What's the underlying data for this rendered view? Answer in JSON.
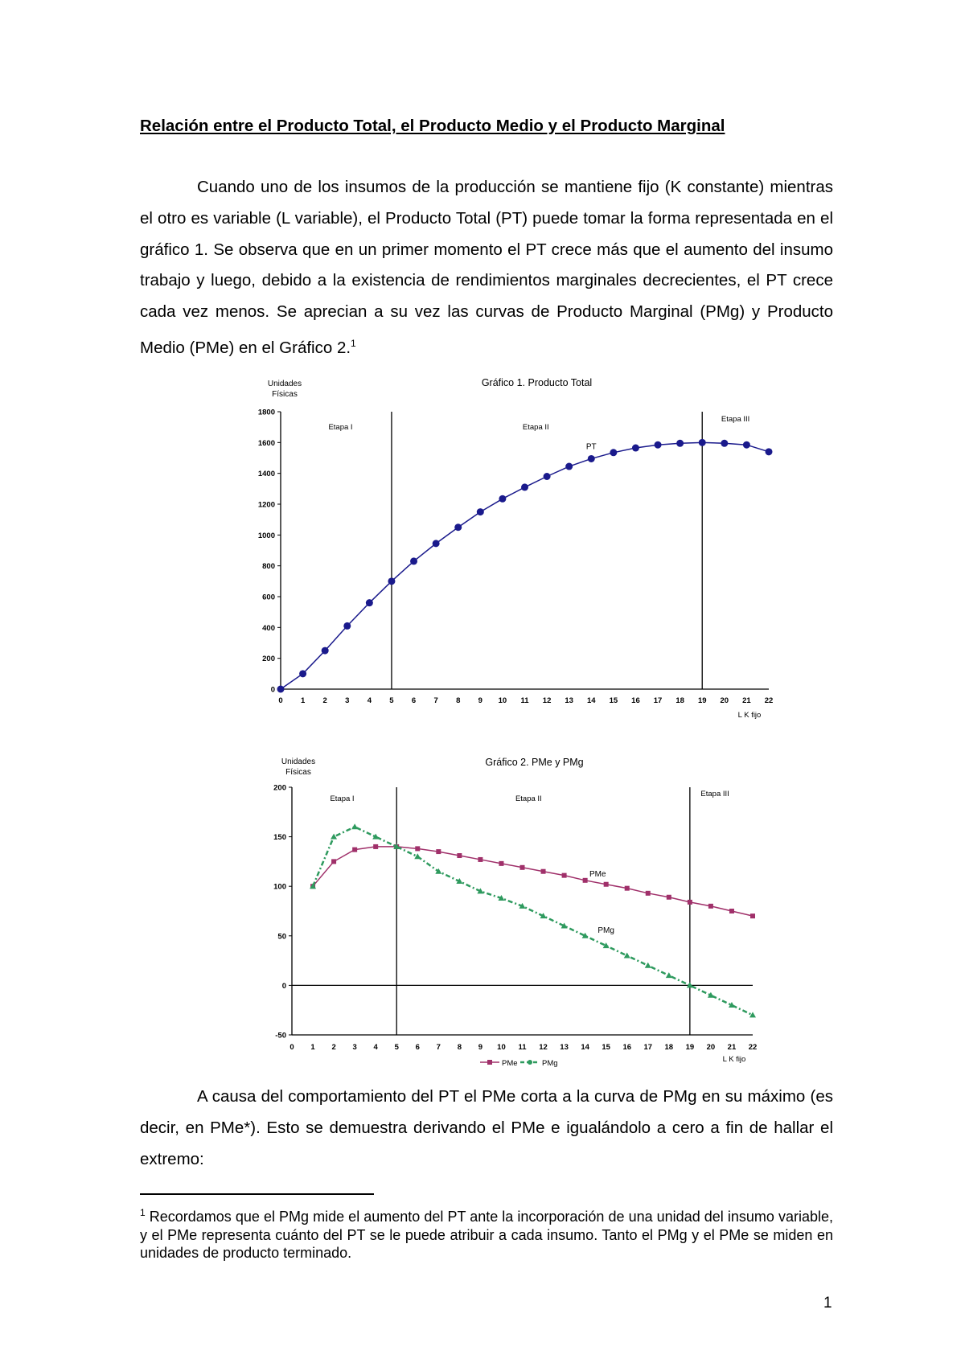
{
  "document": {
    "title": "Relación entre el Producto Total, el Producto Medio y el Producto Marginal",
    "paragraph1": "Cuando uno de los insumos de la producción se mantiene fijo (K constante) mientras el otro es variable (L variable), el Producto Total (PT) puede tomar la forma representada en el gráfico 1. Se observa que en un primer momento el PT crece más que el aumento del insumo trabajo y luego, debido a la existencia de rendimientos marginales decrecientes, el PT crece cada vez menos. Se aprecian a su vez las curvas de Producto Marginal (PMg) y Producto Medio (PMe) en el Gráfico 2.",
    "paragraph1_footnote_ref": "1",
    "paragraph2": "A causa del comportamiento del PT el PMe corta a la curva de PMg en su máximo (es decir, en PMe*). Esto se demuestra derivando el PMe e igualándolo a cero a fin de hallar el extremo:",
    "footnote_mark": "1",
    "footnote": "Recordamos que el PMg mide el aumento del PT ante la incorporación de una unidad del insumo variable, y el PMe  representa cuánto del PT se le puede atribuir a cada insumo. Tanto el PMg y el PMe se miden en unidades de producto terminado.",
    "page_number": "1"
  },
  "chart_data": [
    {
      "type": "line",
      "title": "Gráfico 1. Producto Total",
      "ylabel": "Unidades Físicas",
      "xlabel": "L  K fijo",
      "x": [
        0,
        1,
        2,
        3,
        4,
        5,
        6,
        7,
        8,
        9,
        10,
        11,
        12,
        13,
        14,
        15,
        16,
        17,
        18,
        19,
        20,
        21,
        22
      ],
      "xlim": [
        0,
        22
      ],
      "ylim": [
        0,
        1800
      ],
      "yticks": [
        0,
        200,
        400,
        600,
        800,
        1000,
        1200,
        1400,
        1600,
        1800
      ],
      "series": [
        {
          "name": "PT",
          "color": "#1a1a8c",
          "marker": "circle",
          "values": [
            0,
            100,
            250,
            410,
            560,
            700,
            830,
            945,
            1050,
            1150,
            1235,
            1310,
            1380,
            1445,
            1495,
            1535,
            1565,
            1585,
            1595,
            1600,
            1595,
            1585,
            1540
          ]
        }
      ],
      "stage_lines_x": [
        5,
        19
      ],
      "stage_labels": [
        "Etapa I",
        "Etapa II",
        "Etapa III"
      ],
      "grid": false
    },
    {
      "type": "line",
      "title": "Gráfico 2. PMe y PMg",
      "ylabel": "Unidades Físicas",
      "xlabel": "L  K fijo",
      "x": [
        0,
        1,
        2,
        3,
        4,
        5,
        6,
        7,
        8,
        9,
        10,
        11,
        12,
        13,
        14,
        15,
        16,
        17,
        18,
        19,
        20,
        21,
        22
      ],
      "xlim": [
        0,
        22
      ],
      "ylim": [
        -50,
        200
      ],
      "yticks": [
        -50,
        0,
        50,
        100,
        150,
        200
      ],
      "series": [
        {
          "name": "PMe",
          "color": "#a0306a",
          "marker": "square",
          "style": "solid",
          "values": [
            null,
            100,
            125,
            137,
            140,
            140,
            138,
            135,
            131,
            127,
            123,
            119,
            115,
            111,
            106,
            102,
            98,
            93,
            89,
            84,
            80,
            75,
            70
          ]
        },
        {
          "name": "PMg",
          "color": "#2e9a5e",
          "marker": "triangle",
          "style": "dash-dot",
          "values": [
            null,
            100,
            150,
            160,
            150,
            140,
            130,
            115,
            105,
            95,
            88,
            80,
            70,
            60,
            50,
            40,
            30,
            20,
            10,
            0,
            -10,
            -20,
            -30
          ]
        }
      ],
      "stage_lines_x": [
        5,
        19
      ],
      "stage_labels": [
        "Etapa I",
        "Etapa II",
        "Etapa III"
      ],
      "legend_position": "bottom",
      "grid": false
    }
  ]
}
